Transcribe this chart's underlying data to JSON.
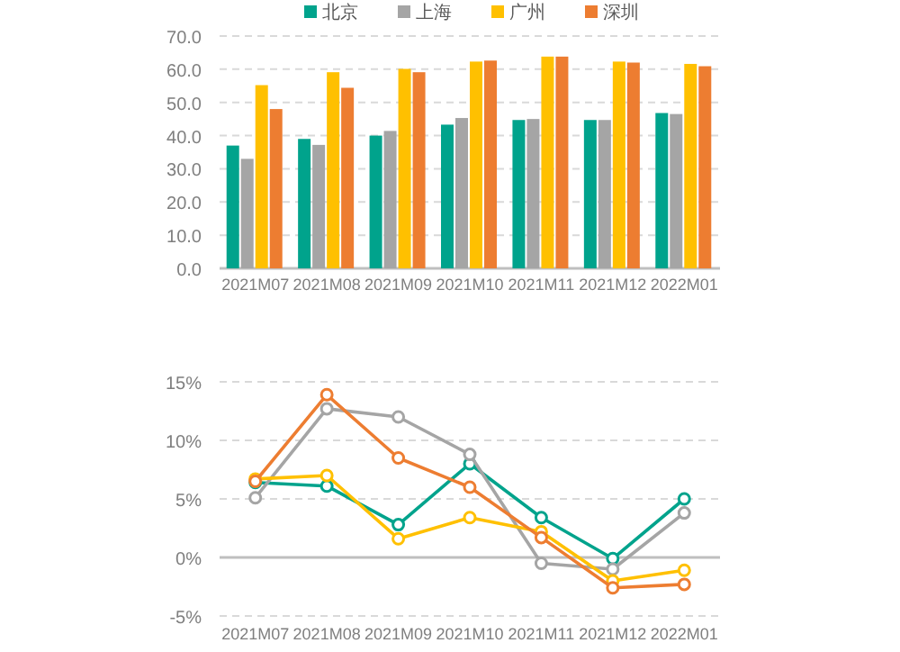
{
  "chart_data": [
    {
      "type": "bar",
      "categories": [
        "2021M07",
        "2021M08",
        "2021M09",
        "2021M10",
        "2021M11",
        "2021M12",
        "2022M01"
      ],
      "series": [
        {
          "name": "北京",
          "color": "#00a38c",
          "values": [
            37,
            39,
            40,
            43.3,
            44.7,
            44.7,
            46.8
          ]
        },
        {
          "name": "上海",
          "color": "#a5a5a5",
          "values": [
            33,
            37.2,
            41.4,
            45.3,
            45,
            44.7,
            46.5
          ]
        },
        {
          "name": "广州",
          "color": "#ffc000",
          "values": [
            55.2,
            59.1,
            60.1,
            62.3,
            63.8,
            62.3,
            61.6
          ]
        },
        {
          "name": "深圳",
          "color": "#ed7d31",
          "values": [
            48,
            54.4,
            59.1,
            62.6,
            63.8,
            62,
            60.9
          ]
        }
      ],
      "ylim": [
        0,
        70
      ],
      "yticks": [
        {
          "value": 0,
          "label": "0.0"
        },
        {
          "value": 10,
          "label": "10.0"
        },
        {
          "value": 20,
          "label": "20.0"
        },
        {
          "value": 30,
          "label": "30.0"
        },
        {
          "value": 40,
          "label": "40.0"
        },
        {
          "value": 50,
          "label": "50.0"
        },
        {
          "value": 60,
          "label": "60.0"
        },
        {
          "value": 70,
          "label": "70.0"
        }
      ],
      "grid": "y",
      "legend": "top"
    },
    {
      "type": "line",
      "categories": [
        "2021M07",
        "2021M08",
        "2021M09",
        "2021M10",
        "2021M11",
        "2021M12",
        "2022M01"
      ],
      "series": [
        {
          "color": "#00a38c",
          "values": [
            6.4,
            6.1,
            2.8,
            8.0,
            3.4,
            -0.1,
            5.0
          ]
        },
        {
          "color": "#a5a5a5",
          "values": [
            5.1,
            12.7,
            12.0,
            8.8,
            -0.5,
            -1.0,
            3.8
          ]
        },
        {
          "color": "#ffc000",
          "values": [
            6.7,
            7.0,
            1.6,
            3.4,
            2.2,
            -2.0,
            -1.1
          ]
        },
        {
          "color": "#ed7d31",
          "values": [
            6.5,
            13.9,
            8.5,
            6.0,
            1.7,
            -2.6,
            -2.3
          ]
        }
      ],
      "ylim": [
        -5,
        15
      ],
      "yticks": [
        {
          "value": -5,
          "label": "-5%"
        },
        {
          "value": 0,
          "label": "0%"
        },
        {
          "value": 5,
          "label": "5%"
        },
        {
          "value": 10,
          "label": "10%"
        },
        {
          "value": 15,
          "label": "15%"
        }
      ],
      "grid": "y",
      "marker": "circle",
      "line_style": "solid"
    }
  ]
}
